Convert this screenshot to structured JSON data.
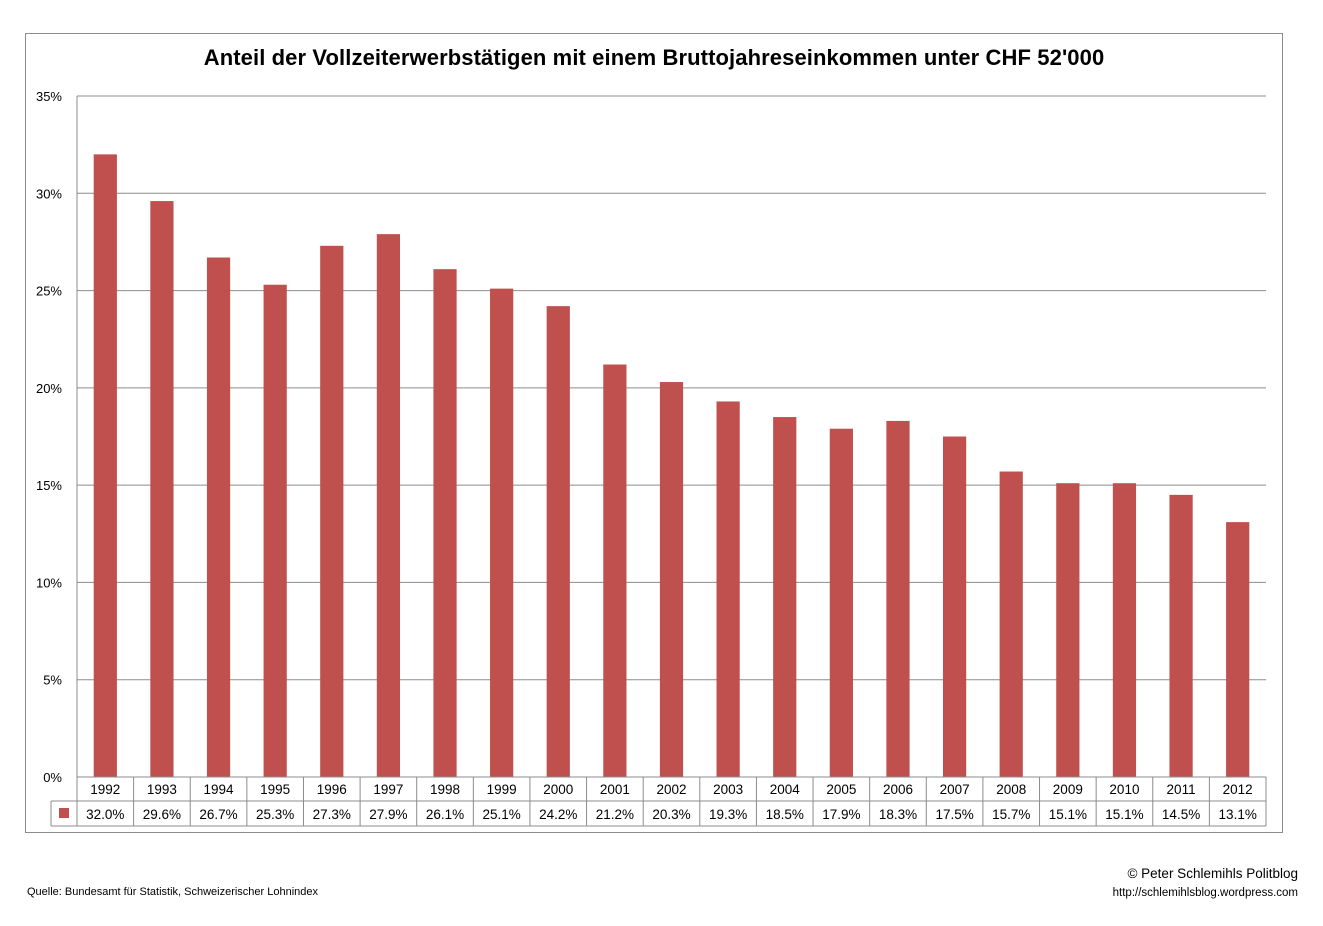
{
  "chart_data": {
    "type": "bar",
    "title": "Anteil der Vollzeiterwerbstätigen mit einem Bruttojahreseinkommen unter CHF 52'000",
    "xlabel": "",
    "ylabel": "",
    "ylim": [
      0,
      35
    ],
    "yticks": [
      "0%",
      "5%",
      "10%",
      "15%",
      "20%",
      "25%",
      "30%",
      "35%"
    ],
    "categories": [
      "1992",
      "1993",
      "1994",
      "1995",
      "1996",
      "1997",
      "1998",
      "1999",
      "2000",
      "2001",
      "2002",
      "2003",
      "2004",
      "2005",
      "2006",
      "2007",
      "2008",
      "2009",
      "2010",
      "2011",
      "2012"
    ],
    "values": [
      32.0,
      29.6,
      26.7,
      25.3,
      27.3,
      27.9,
      26.1,
      25.1,
      24.2,
      21.2,
      20.3,
      19.3,
      18.5,
      17.9,
      18.3,
      17.5,
      15.7,
      15.1,
      15.1,
      14.5,
      13.1
    ],
    "value_labels": [
      "32.0%",
      "29.6%",
      "26.7%",
      "25.3%",
      "27.3%",
      "27.9%",
      "26.1%",
      "25.1%",
      "24.2%",
      "21.2%",
      "20.3%",
      "19.3%",
      "18.5%",
      "17.9%",
      "18.3%",
      "17.5%",
      "15.7%",
      "15.1%",
      "15.1%",
      "14.5%",
      "13.1%"
    ],
    "grid": true,
    "data_table": true,
    "bar_color": "#c0504d"
  },
  "footer": {
    "copyright": "© Peter Schlemihls Politblog",
    "url": "http://schlemihlsblog.wordpress.com",
    "source": "Quelle: Bundesamt für Statistik, Schweizerischer Lohnindex"
  }
}
